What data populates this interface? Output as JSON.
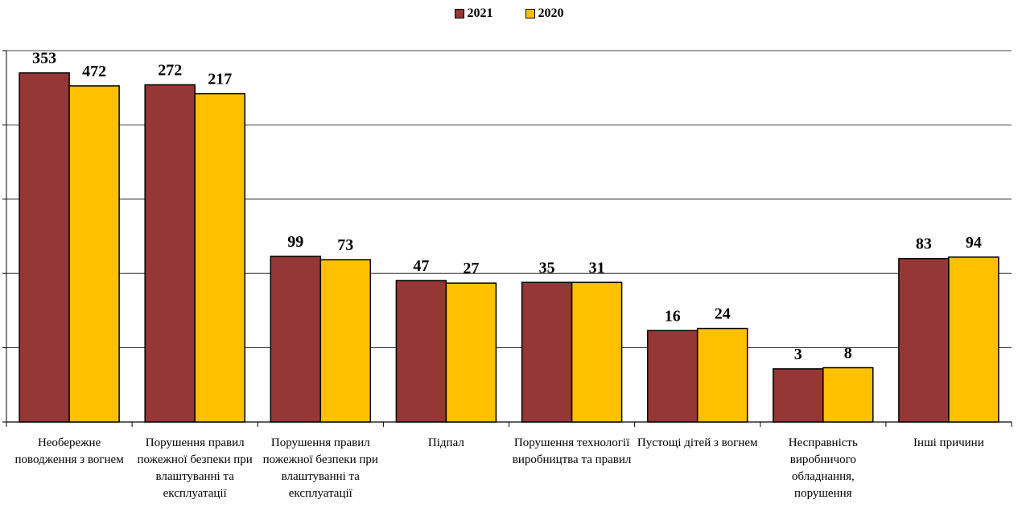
{
  "chart_data": {
    "type": "bar",
    "title": "",
    "xlabel": "",
    "ylabel": "",
    "categories": [
      "Необережне поводження з вогнем",
      "Порушення правил пожежної безпеки при влаштуванні та експлуатації",
      "Порушення правил пожежної безпеки при влаштуванні та експлуатації",
      "Підпал",
      "Порушення технології виробництва та правил",
      "Пустощі дітей з вогнем",
      "Несправність виробничого обладнання, порушення",
      "Інші причини"
    ],
    "series": [
      {
        "name": "2021",
        "color": "#953735",
        "values": [
          353,
          272,
          99,
          47,
          35,
          16,
          3,
          83
        ]
      },
      {
        "name": "2020",
        "color": "#FFC000",
        "values": [
          472,
          217,
          73,
          27,
          31,
          24,
          8,
          94
        ]
      }
    ],
    "bar_levels": [
      [
        0.94,
        0.905
      ],
      [
        0.908,
        0.884
      ],
      [
        0.446,
        0.437
      ],
      [
        0.381,
        0.374
      ],
      [
        0.376,
        0.376
      ],
      [
        0.246,
        0.252
      ],
      [
        0.143,
        0.146
      ],
      [
        0.44,
        0.444
      ]
    ],
    "grid": true,
    "legend_position": "top"
  }
}
